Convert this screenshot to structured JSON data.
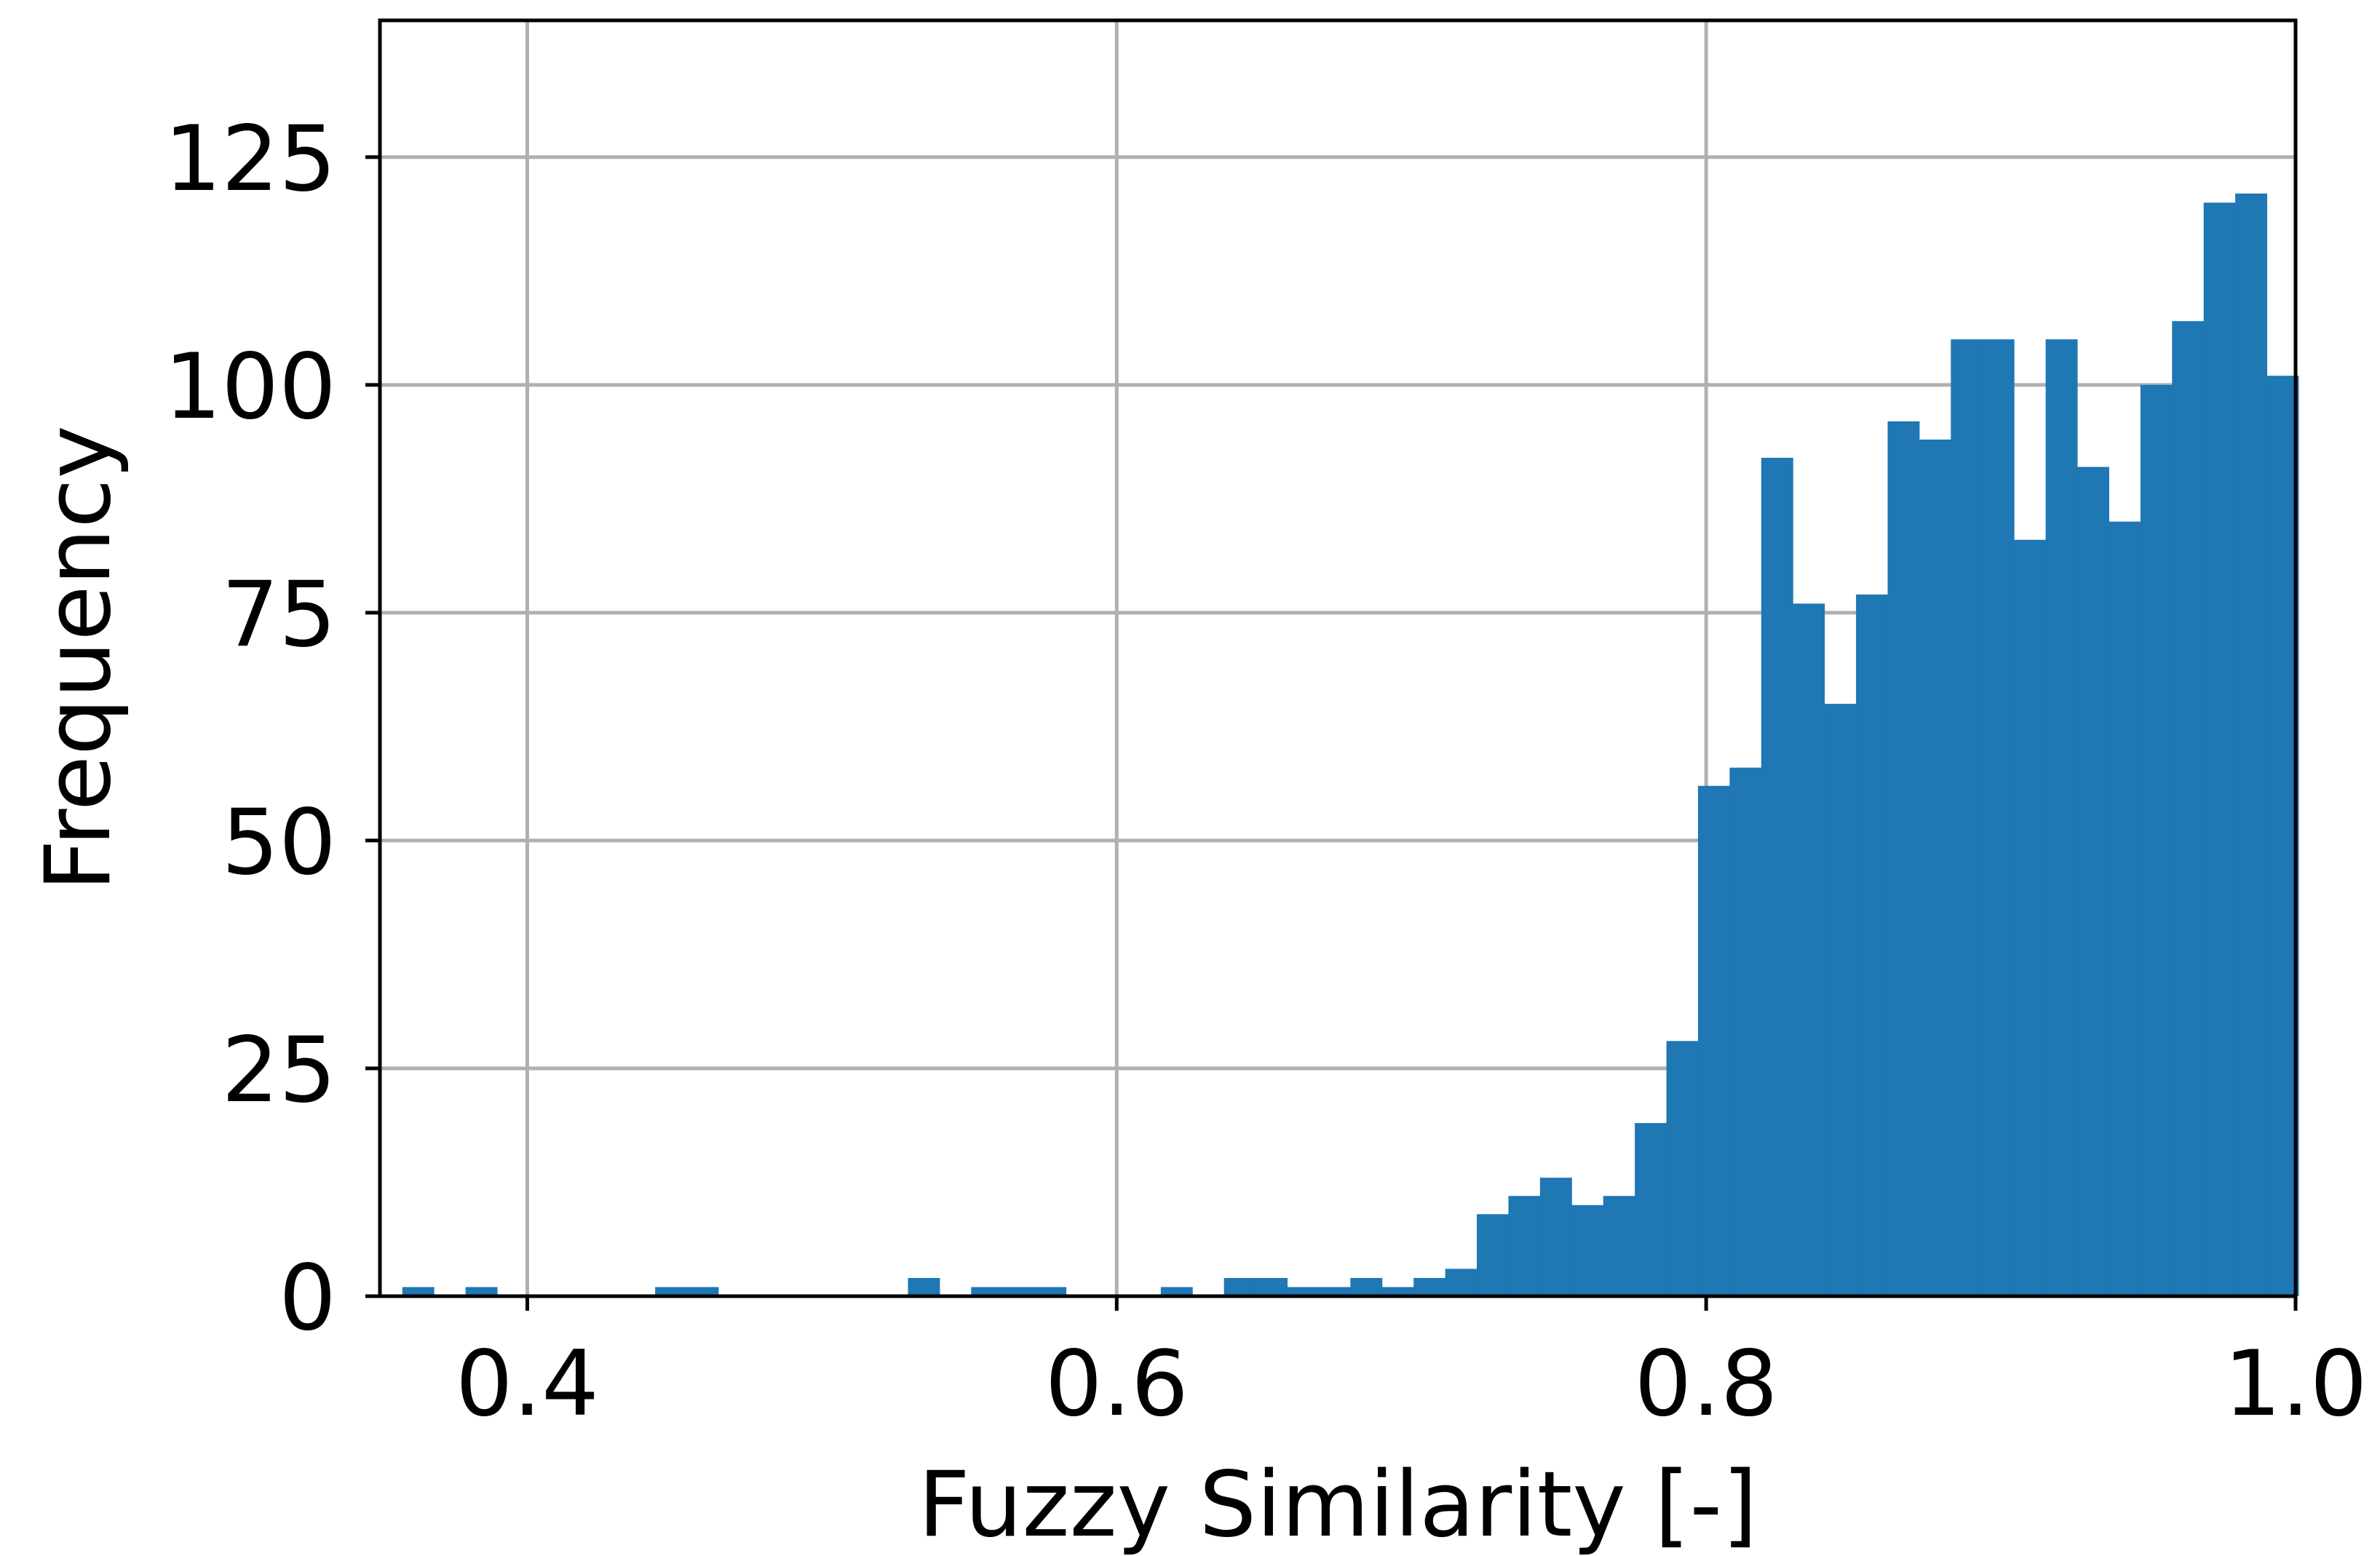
{
  "chart_data": {
    "type": "bar",
    "title": "",
    "xlabel": "Fuzzy Similarity [-]",
    "ylabel": "Frequency",
    "xlim": [
      0.35,
      1.0
    ],
    "ylim": [
      0,
      140
    ],
    "grid": true,
    "bar_color": "#1f77b4",
    "x_ticks": [
      {
        "value": 0.4,
        "label": "0.4"
      },
      {
        "value": 0.6,
        "label": "0.6"
      },
      {
        "value": 0.8,
        "label": "0.8"
      },
      {
        "value": 1.0,
        "label": "1.0"
      }
    ],
    "y_ticks": [
      {
        "value": 0,
        "label": "0"
      },
      {
        "value": 25,
        "label": "25"
      },
      {
        "value": 50,
        "label": "50"
      },
      {
        "value": 75,
        "label": "75"
      },
      {
        "value": 100,
        "label": "100"
      },
      {
        "value": 125,
        "label": "125"
      }
    ],
    "bin_edges_start": 0.3576,
    "bin_width": 0.010723,
    "bin_counts": [
      1,
      0,
      1,
      0,
      0,
      0,
      0,
      0,
      1,
      1,
      0,
      0,
      0,
      0,
      0,
      0,
      2,
      0,
      1,
      1,
      1,
      0,
      0,
      0,
      1,
      0,
      2,
      2,
      1,
      1,
      2,
      1,
      2,
      3,
      9,
      11,
      13,
      10,
      11,
      19,
      28,
      56,
      58,
      92,
      76,
      65,
      77,
      96,
      94,
      105,
      105,
      83,
      105,
      91,
      85,
      100,
      107,
      120,
      121,
      101
    ]
  }
}
